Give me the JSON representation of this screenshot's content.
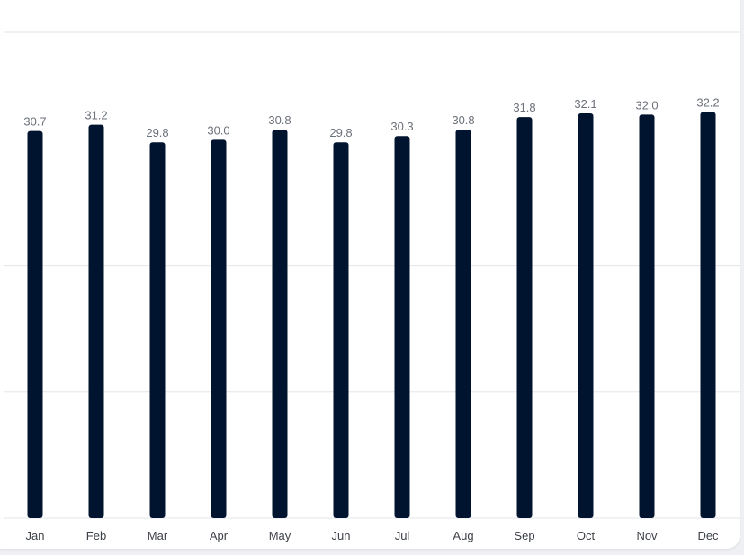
{
  "chart_data": {
    "type": "bar",
    "categories": [
      "Jan",
      "Feb",
      "Mar",
      "Apr",
      "May",
      "Jun",
      "Jul",
      "Aug",
      "Sep",
      "Oct",
      "Nov",
      "Dec"
    ],
    "values": [
      30.7,
      31.2,
      29.8,
      30.0,
      30.8,
      29.8,
      30.3,
      30.8,
      31.8,
      32.1,
      32.0,
      32.2
    ],
    "value_labels": [
      "30.7",
      "31.2",
      "29.8",
      "30.0",
      "30.8",
      "29.8",
      "30.3",
      "30.8",
      "31.8",
      "32.1",
      "32.0",
      "32.2"
    ],
    "title": "",
    "xlabel": "",
    "ylabel": "",
    "ylim": [
      0,
      40
    ],
    "grid": true,
    "bar_color": "#00142f",
    "gridline_color": "#e3e5e8"
  }
}
